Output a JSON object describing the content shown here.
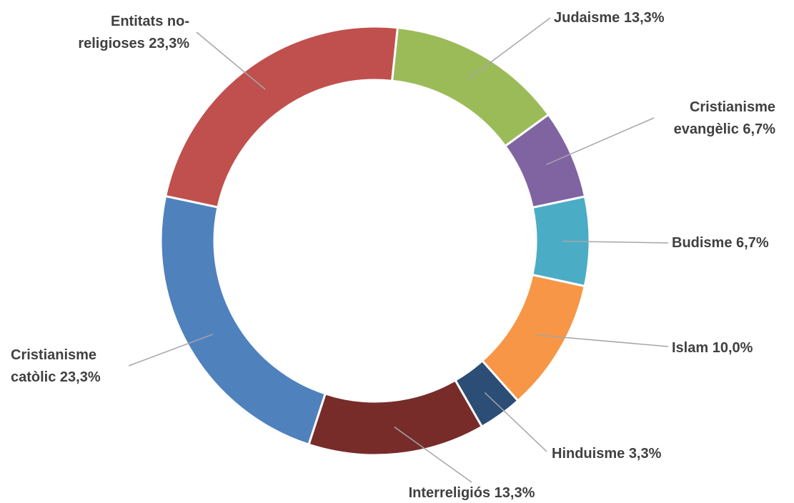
{
  "chart_data": {
    "type": "donut",
    "categories": [
      "Judaisme",
      "Cristianisme evangèlic",
      "Budisme",
      "Islam",
      "Hinduisme",
      "Interreligiós",
      "Cristianisme catòlic",
      "Entitats no-religioses"
    ],
    "values": [
      13.3,
      6.7,
      6.7,
      10.0,
      3.3,
      13.3,
      23.3,
      23.3
    ],
    "value_labels": [
      "13,3%",
      "6,7%",
      "6,7%",
      "10,0%",
      "3,3%",
      "13,3%",
      "23,3%",
      "23,3%"
    ],
    "colors": [
      "#9bbb59",
      "#8064a2",
      "#4bacc6",
      "#f79646",
      "#2c4d75",
      "#772c2a",
      "#4f81bd",
      "#c0504d"
    ]
  }
}
